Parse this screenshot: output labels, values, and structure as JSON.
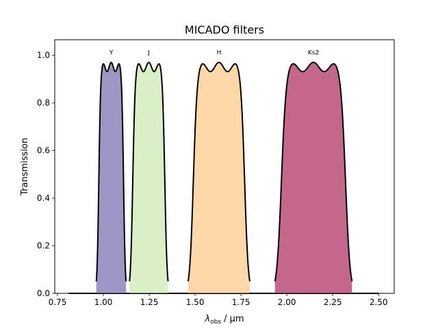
{
  "chart_data": {
    "type": "area",
    "title": "MICADO filters",
    "xlabel_symbol": "λ",
    "xlabel_subscript": "obs",
    "xlabel_unit": " / μm",
    "ylabel": "Transmission",
    "xlim": [
      0.735,
      2.585
    ],
    "ylim": [
      0.0,
      1.065
    ],
    "xticks": [
      0.75,
      1.0,
      1.25,
      1.5,
      1.75,
      2.0,
      2.25,
      2.5
    ],
    "xtick_labels": [
      "0.75",
      "1.00",
      "1.25",
      "1.50",
      "1.75",
      "2.00",
      "2.25",
      "2.50"
    ],
    "yticks": [
      0.0,
      0.2,
      0.4,
      0.6,
      0.8,
      1.0
    ],
    "ytick_labels": [
      "0.0",
      "0.2",
      "0.4",
      "0.6",
      "0.8",
      "1.0"
    ],
    "baseline_ranges": [
      [
        0.81,
        2.5
      ]
    ],
    "series": [
      {
        "name": "Y",
        "lo": 0.975,
        "hi": 1.11,
        "peak": 0.97,
        "ripples": 3,
        "ripple_depth": 0.04,
        "fill": "#9e97c6"
      },
      {
        "name": "J",
        "lo": 1.16,
        "hi": 1.335,
        "peak": 0.97,
        "ripples": 3,
        "ripple_depth": 0.04,
        "fill": "#d9efc6"
      },
      {
        "name": "H",
        "lo": 1.49,
        "hi": 1.77,
        "peak": 0.97,
        "ripples": 3,
        "ripple_depth": 0.04,
        "fill": "#fdd7a8"
      },
      {
        "name": "Ks2",
        "lo": 1.97,
        "hi": 2.32,
        "peak": 0.97,
        "ripples": 3,
        "ripple_depth": 0.04,
        "fill": "#c4678c"
      }
    ]
  }
}
